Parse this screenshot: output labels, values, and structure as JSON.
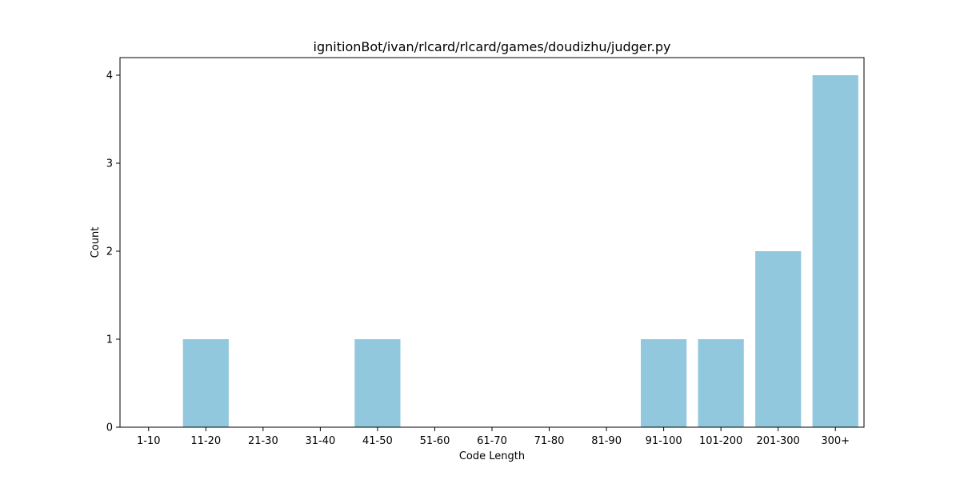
{
  "chart_data": {
    "type": "bar",
    "title": "ignitionBot/ivan/rlcard/rlcard/games/doudizhu/judger.py",
    "xlabel": "Code Length",
    "ylabel": "Count",
    "categories": [
      "1-10",
      "11-20",
      "21-30",
      "31-40",
      "41-50",
      "51-60",
      "61-70",
      "71-80",
      "81-90",
      "91-100",
      "101-200",
      "201-300",
      "300+"
    ],
    "values": [
      0,
      1,
      0,
      0,
      1,
      0,
      0,
      0,
      0,
      1,
      1,
      2,
      4
    ],
    "yticks": [
      "0",
      "1",
      "2",
      "3",
      "4"
    ],
    "ylim": [
      0,
      4.2
    ],
    "grid": false,
    "legend": "none",
    "bar_color": "#92c8de"
  }
}
